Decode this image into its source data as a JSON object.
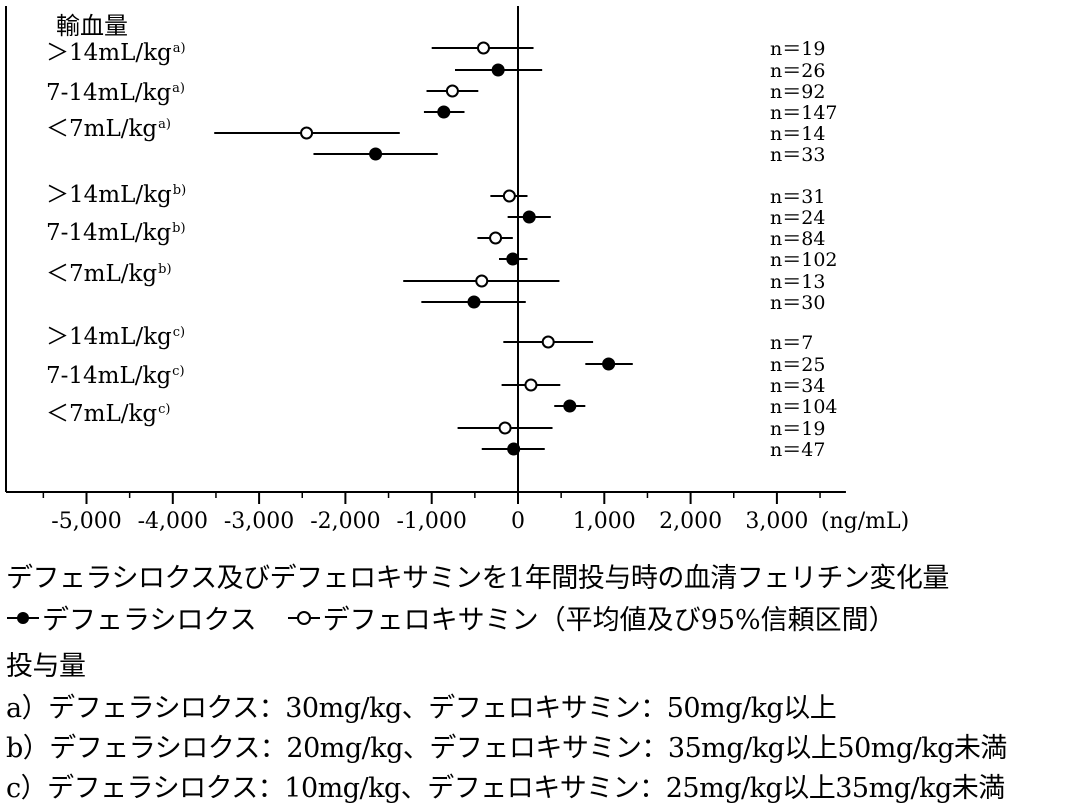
{
  "chart_data": {
    "type": "forest",
    "title": "デフェラシロクス及びデフェロキサミンを1年間投与時の血清フェリチン変化量",
    "group_header": "輸血量",
    "xunit": "(ng/mL)",
    "xlim": [
      -6000,
      3800
    ],
    "xticks": [
      -5000,
      -4000,
      -3000,
      -2000,
      -1000,
      0,
      1000,
      2000,
      3000
    ],
    "xtick_labels": [
      "-5,000",
      "-4,000",
      "-3,000",
      "-2,000",
      "-1,000",
      "0",
      "1,000",
      "2,000",
      "3,000"
    ],
    "series": [
      {
        "name": "デフェラシロクス",
        "marker": "filled-circle"
      },
      {
        "name": "デフェロキサミン",
        "marker": "open-circle"
      }
    ],
    "groups": [
      {
        "label": "＞14mL/kg",
        "sup": "a)",
        "rows": [
          {
            "series": "デフェロキサミン",
            "mean": -400,
            "lo": -1000,
            "hi": 180,
            "n": "n＝19"
          },
          {
            "series": "デフェラシロクス",
            "mean": -230,
            "lo": -730,
            "hi": 280,
            "n": "n＝26"
          }
        ]
      },
      {
        "label": "7-14mL/kg",
        "sup": "a)",
        "rows": [
          {
            "series": "デフェロキサミン",
            "mean": -760,
            "lo": -1060,
            "hi": -460,
            "n": "n＝92"
          },
          {
            "series": "デフェラシロクス",
            "mean": -860,
            "lo": -1090,
            "hi": -620,
            "n": "n＝147"
          }
        ]
      },
      {
        "label": "＜7mL/kg",
        "sup": "a)",
        "rows": [
          {
            "series": "デフェロキサミン",
            "mean": -2450,
            "lo": -3520,
            "hi": -1370,
            "n": "n＝14"
          },
          {
            "series": "デフェラシロクス",
            "mean": -1650,
            "lo": -2370,
            "hi": -930,
            "n": "n＝33"
          }
        ]
      },
      {
        "label": "＞14mL/kg",
        "sup": "b)",
        "rows": [
          {
            "series": "デフェロキサミン",
            "mean": -100,
            "lo": -320,
            "hi": 110,
            "n": "n＝31"
          },
          {
            "series": "デフェラシロクス",
            "mean": 130,
            "lo": -120,
            "hi": 380,
            "n": "n＝24"
          }
        ]
      },
      {
        "label": "7-14mL/kg",
        "sup": "b)",
        "rows": [
          {
            "series": "デフェロキサミン",
            "mean": -260,
            "lo": -470,
            "hi": -60,
            "n": "n＝84"
          },
          {
            "series": "デフェラシロクス",
            "mean": -60,
            "lo": -220,
            "hi": 110,
            "n": "n＝102"
          }
        ]
      },
      {
        "label": "＜7mL/kg",
        "sup": "b)",
        "rows": [
          {
            "series": "デフェロキサミン",
            "mean": -420,
            "lo": -1330,
            "hi": 480,
            "n": "n＝13"
          },
          {
            "series": "デフェラシロクス",
            "mean": -510,
            "lo": -1120,
            "hi": 90,
            "n": "n＝30"
          }
        ]
      },
      {
        "label": "＞14mL/kg",
        "sup": "c)",
        "rows": [
          {
            "series": "デフェロキサミン",
            "mean": 350,
            "lo": -170,
            "hi": 870,
            "n": "n＝7"
          },
          {
            "series": "デフェラシロクス",
            "mean": 1050,
            "lo": 780,
            "hi": 1330,
            "n": "n＝25"
          }
        ]
      },
      {
        "label": "7-14mL/kg",
        "sup": "c)",
        "rows": [
          {
            "series": "デフェロキサミン",
            "mean": 150,
            "lo": -190,
            "hi": 490,
            "n": "n＝34"
          },
          {
            "series": "デフェラシロクス",
            "mean": 600,
            "lo": 420,
            "hi": 780,
            "n": "n＝104"
          }
        ]
      },
      {
        "label": "＜7mL/kg",
        "sup": "c)",
        "rows": [
          {
            "series": "デフェロキサミン",
            "mean": -150,
            "lo": -700,
            "hi": 400,
            "n": "n＝19"
          },
          {
            "series": "デフェラシロクス",
            "mean": -50,
            "lo": -420,
            "hi": 310,
            "n": "n＝47"
          }
        ]
      }
    ]
  },
  "caption": {
    "title": "デフェラシロクス及びデフェロキサミンを1年間投与時の血清フェリチン変化量",
    "legend_deferasirox": "デフェラシロクス",
    "legend_deferoxamine": "デフェロキサミン",
    "legend_note": "（平均値及び95%信頼区間）",
    "dose_header": "投与量",
    "dose_a": "a）デフェラシロクス：30mg/kg、デフェロキサミン：50mg/kg以上",
    "dose_b": "b）デフェラシロクス：20mg/kg、デフェロキサミン：35mg/kg以上50mg/kg未満",
    "dose_c": "c）デフェラシロクス：10mg/kg、デフェロキサミン：25mg/kg以上35mg/kg未満"
  }
}
